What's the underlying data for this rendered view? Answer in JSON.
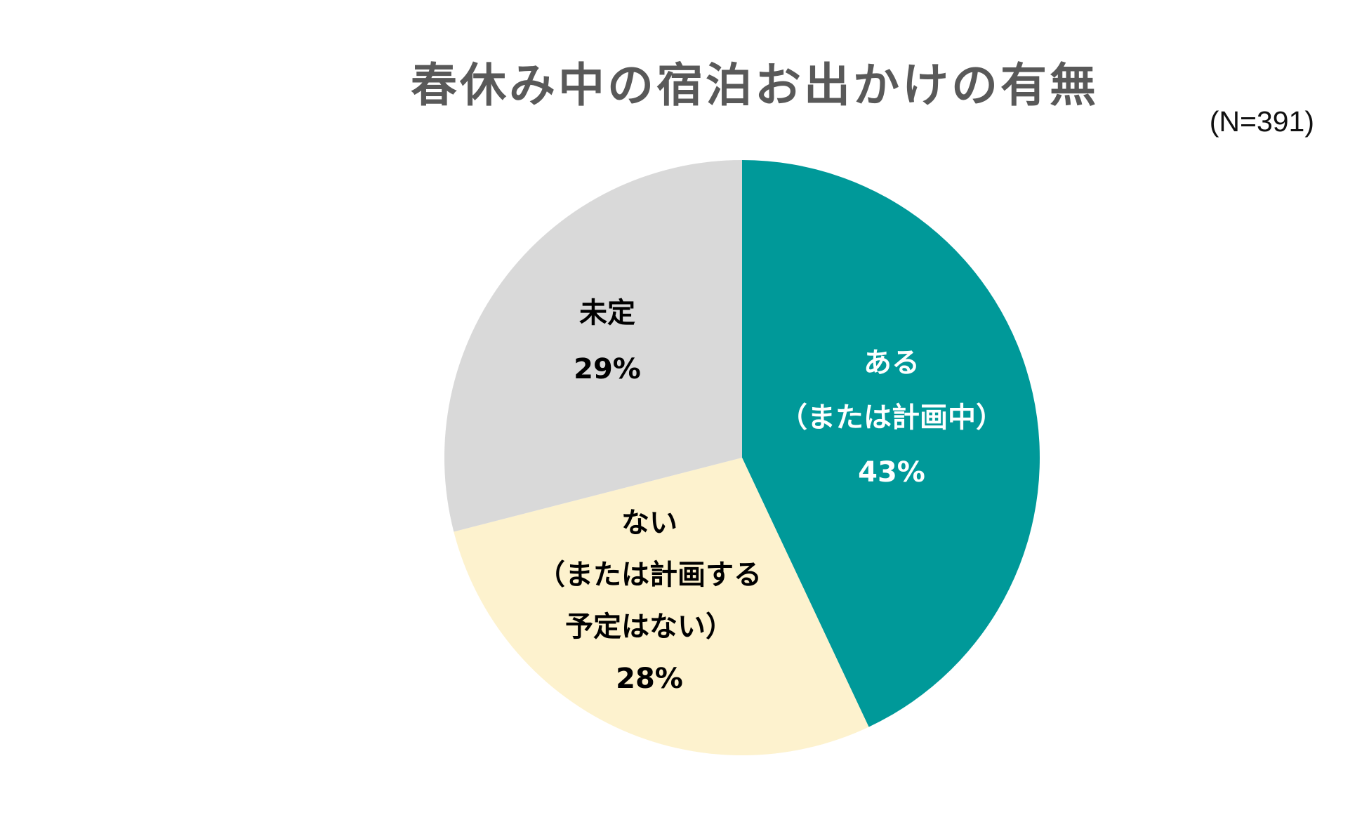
{
  "chart_data": {
    "type": "pie",
    "title": "春休み中の宿泊お出かけの有無",
    "sample_size": "(N=391)",
    "start_angle": "12 o'clock, clockwise",
    "slices": [
      {
        "label_lines": [
          "ある",
          "（または計画中）"
        ],
        "value_label": "43%",
        "value": 43,
        "color": "#009999",
        "text_color": "#ffffff"
      },
      {
        "label_lines": [
          "ない",
          "（または計画する",
          "予定はない）"
        ],
        "value_label": "28%",
        "value": 28,
        "color": "#FDF2CE",
        "text_color": "#000000"
      },
      {
        "label_lines": [
          "未定"
        ],
        "value_label": "29%",
        "value": 29,
        "color": "#D9D9D9",
        "text_color": "#000000"
      }
    ]
  }
}
